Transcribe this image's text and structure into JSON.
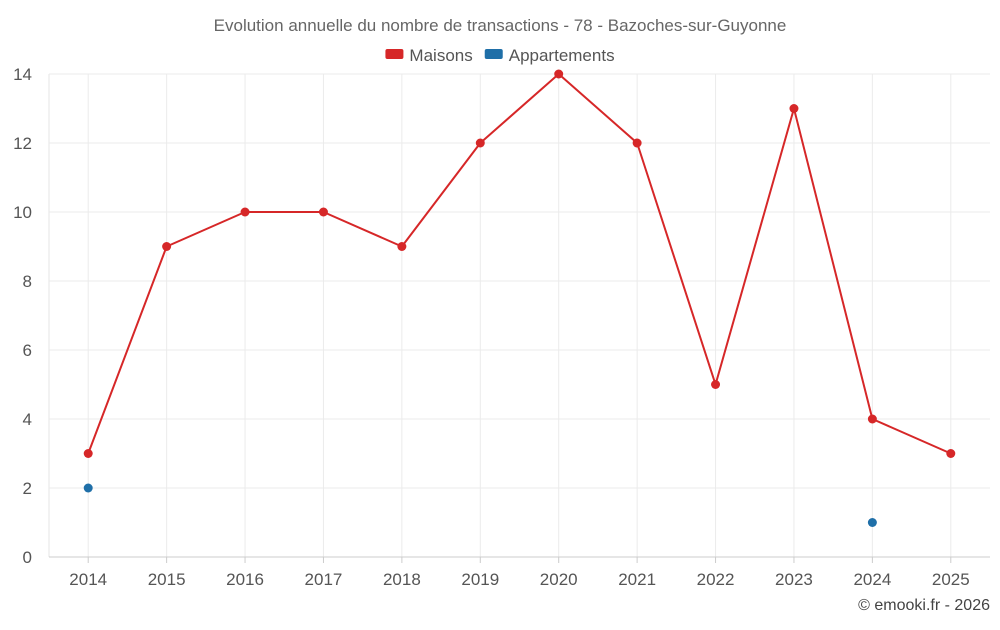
{
  "chart_data": {
    "type": "line",
    "title": "Evolution annuelle du nombre de transactions - 78 - Bazoches-sur-Guyonne",
    "xlabel": "",
    "ylabel": "",
    "categories": [
      "2014",
      "2015",
      "2016",
      "2017",
      "2018",
      "2019",
      "2020",
      "2021",
      "2022",
      "2023",
      "2024",
      "2025"
    ],
    "ylim": [
      0,
      14
    ],
    "yticks": [
      0,
      2,
      4,
      6,
      8,
      10,
      12,
      14
    ],
    "grid": true,
    "legend_position": "top-center",
    "series": [
      {
        "name": "Maisons",
        "color": "#d62728",
        "values": [
          3,
          9,
          10,
          10,
          9,
          12,
          14,
          12,
          5,
          13,
          4,
          3
        ]
      },
      {
        "name": "Appartements",
        "color": "#1f6fa8",
        "values": [
          2,
          null,
          null,
          null,
          null,
          null,
          null,
          null,
          null,
          null,
          1,
          null
        ]
      }
    ],
    "credit": "© emooki.fr - 2026"
  }
}
